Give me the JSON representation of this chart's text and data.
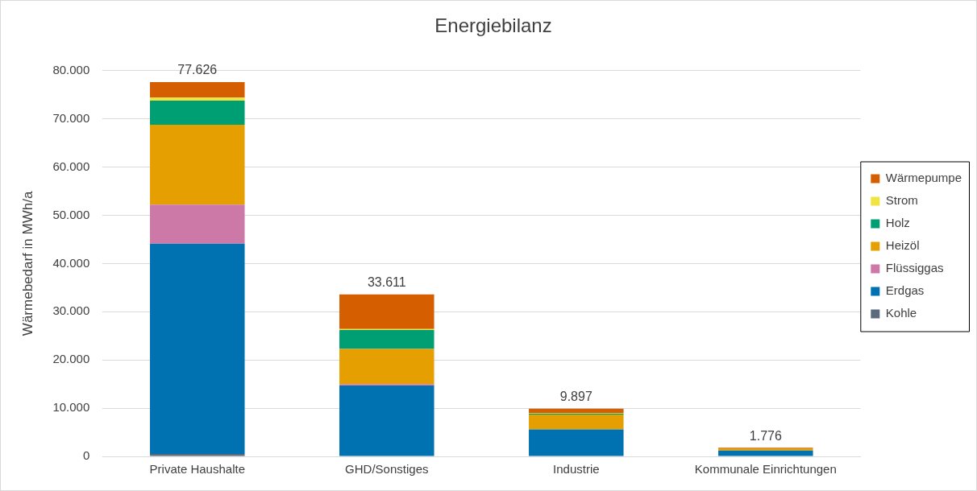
{
  "chart_data": {
    "type": "bar",
    "title": "Energiebilanz",
    "ylabel": "Wärmebedarf in MWh/a",
    "stacked": true,
    "categories": [
      "Private Haushalte",
      "GHD/Sonstiges",
      "Industrie",
      "Kommunale Einrichtungen"
    ],
    "series": [
      {
        "name": "Kohle",
        "color": "#5a6b7c",
        "values": [
          500,
          0,
          0,
          0
        ]
      },
      {
        "name": "Erdgas",
        "color": "#0072b2",
        "values": [
          43600,
          14700,
          5600,
          1200
        ]
      },
      {
        "name": "Flüssiggas",
        "color": "#cc79a7",
        "values": [
          8100,
          300,
          0,
          0
        ]
      },
      {
        "name": "Heizöl",
        "color": "#e69f00",
        "values": [
          16600,
          7300,
          3100,
          450
        ]
      },
      {
        "name": "Holz",
        "color": "#009e73",
        "values": [
          5000,
          3900,
          200,
          0
        ]
      },
      {
        "name": "Strom",
        "color": "#f0e442",
        "values": [
          600,
          200,
          100,
          0
        ]
      },
      {
        "name": "Wärmepumpe",
        "color": "#d55e00",
        "values": [
          3226,
          7211,
          897,
          126
        ]
      }
    ],
    "totals": [
      "77.626",
      "33.611",
      "9.897",
      "1.776"
    ],
    "ylim": [
      0,
      80000
    ],
    "yticks": [
      {
        "value": 0,
        "label": "0"
      },
      {
        "value": 10000,
        "label": "10.000"
      },
      {
        "value": 20000,
        "label": "20.000"
      },
      {
        "value": 30000,
        "label": "30.000"
      },
      {
        "value": 40000,
        "label": "40.000"
      },
      {
        "value": 50000,
        "label": "50.000"
      },
      {
        "value": 60000,
        "label": "60.000"
      },
      {
        "value": 70000,
        "label": "70.000"
      },
      {
        "value": 80000,
        "label": "80.000"
      }
    ],
    "grid": "y",
    "legend": "right"
  }
}
